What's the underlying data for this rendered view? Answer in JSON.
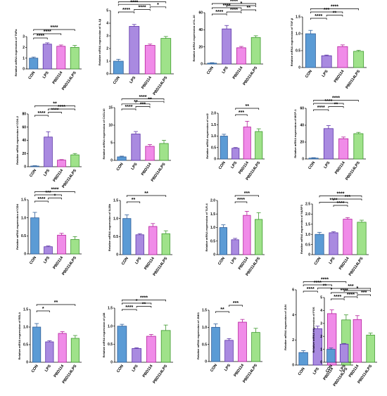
{
  "figure": {
    "colors": [
      "#5b9bd5",
      "#a98ae0",
      "#f08be8",
      "#9fe28a"
    ],
    "edge_colors": [
      "#2f5f9a",
      "#5c33a8",
      "#b4209c",
      "#3f9a2f"
    ]
  },
  "chart_data": [
    {
      "type": "bar",
      "ylabel": "Relative mRNA expression of TNFα",
      "categories": [
        "CON",
        "LPS",
        "PBD114",
        "PBD114LPS"
      ],
      "values": [
        1.0,
        2.3,
        2.1,
        2.0
      ],
      "errors": [
        0.1,
        0.12,
        0.12,
        0.18
      ],
      "ylim": [
        0,
        3
      ],
      "yticks": [
        "0",
        "1",
        "2",
        "3"
      ],
      "significance": [
        {
          "from": 0,
          "to": 1,
          "label": "****"
        },
        {
          "from": 0,
          "to": 2,
          "label": "****"
        },
        {
          "from": 0,
          "to": 3,
          "label": "****"
        }
      ]
    },
    {
      "type": "bar",
      "ylabel": "Relative mRNA expression of IL-1β",
      "categories": [
        "CON",
        "LPS",
        "PBD114",
        "PBD114LPS"
      ],
      "values": [
        1.0,
        3.75,
        2.25,
        2.8
      ],
      "errors": [
        0.15,
        0.15,
        0.1,
        0.15
      ],
      "ylim": [
        0,
        5
      ],
      "yticks": [
        "0",
        "1",
        "2",
        "3",
        "4",
        "5"
      ],
      "significance": [
        {
          "from": 0,
          "to": 1,
          "label": "****"
        },
        {
          "from": 1,
          "to": 2,
          "label": "****"
        },
        {
          "from": 2,
          "to": 3,
          "label": "*"
        },
        {
          "from": 0,
          "to": 2,
          "label": "****"
        },
        {
          "from": 0,
          "to": 3,
          "label": "****"
        }
      ]
    },
    {
      "type": "bar",
      "ylabel": "Relative mRNA expression of IL-10",
      "categories": [
        "CON",
        "LPS",
        "PBD114",
        "PBD114LPS"
      ],
      "values": [
        1.0,
        41.0,
        19.0,
        31.0
      ],
      "errors": [
        0.5,
        4.0,
        1.5,
        2.0
      ],
      "ylim": [
        0,
        60
      ],
      "yticks": [
        "0",
        "20",
        "40",
        "60"
      ],
      "significance": [
        {
          "from": 0,
          "to": 1,
          "label": "****"
        },
        {
          "from": 1,
          "to": 2,
          "label": "****"
        },
        {
          "from": 2,
          "to": 3,
          "label": "**"
        },
        {
          "from": 0,
          "to": 2,
          "label": "****"
        },
        {
          "from": 1,
          "to": 3,
          "label": "*"
        },
        {
          "from": 0,
          "to": 3,
          "label": "****"
        }
      ]
    },
    {
      "type": "bar",
      "ylabel": "Relative mRNA expression of TGF-β",
      "categories": [
        "CON",
        "LPS",
        "PBD114",
        "PBD114LPS"
      ],
      "values": [
        1.0,
        0.35,
        0.62,
        0.48
      ],
      "errors": [
        0.1,
        0.02,
        0.05,
        0.03
      ],
      "ylim": [
        0,
        1.5
      ],
      "yticks": [
        "0",
        "0.5",
        "1.0",
        "1.5"
      ],
      "significance": [
        {
          "from": 0,
          "to": 1,
          "label": "****"
        },
        {
          "from": 1,
          "to": 2,
          "label": "**"
        },
        {
          "from": 0,
          "to": 2,
          "label": "***"
        },
        {
          "from": 0,
          "to": 3,
          "label": "****"
        }
      ]
    },
    {
      "type": "bar",
      "ylabel": "Relative mRNA expression of COX-2",
      "categories": [
        "CON",
        "LPS",
        "PBD114",
        "PBD114LPS"
      ],
      "values": [
        1.0,
        45.0,
        10.0,
        18.0
      ],
      "errors": [
        0.5,
        8.0,
        0.8,
        2.0
      ],
      "ylim": [
        0,
        80
      ],
      "yticks": [
        "0",
        "20",
        "40",
        "60",
        "80"
      ],
      "significance": [
        {
          "from": 0,
          "to": 1,
          "label": "****"
        },
        {
          "from": 1,
          "to": 2,
          "label": "****"
        },
        {
          "from": 1,
          "to": 3,
          "label": "****"
        },
        {
          "from": 0,
          "to": 3,
          "label": "**"
        }
      ]
    },
    {
      "type": "bar",
      "ylabel": "Relative mRNA expression of CXCL10",
      "categories": [
        "CON",
        "LPS",
        "PBD114",
        "PBD114LPS"
      ],
      "values": [
        1.0,
        7.5,
        4.0,
        4.8
      ],
      "errors": [
        0.2,
        0.7,
        0.5,
        0.9
      ],
      "ylim": [
        0,
        15
      ],
      "yticks": [
        "0",
        "5",
        "10",
        "15"
      ],
      "significance": [
        {
          "from": 0,
          "to": 1,
          "label": "****"
        },
        {
          "from": 1,
          "to": 2,
          "label": "***"
        },
        {
          "from": 0,
          "to": 2,
          "label": "**"
        },
        {
          "from": 1,
          "to": 3,
          "label": "**"
        },
        {
          "from": 0,
          "to": 3,
          "label": "****"
        }
      ]
    },
    {
      "type": "bar",
      "ylabel": "Relative mRNA expression of ccl2",
      "categories": [
        "CON",
        "LPS",
        "PBD114",
        "PBD114LPS"
      ],
      "values": [
        1.0,
        0.47,
        1.4,
        1.2
      ],
      "errors": [
        0.08,
        0.03,
        0.25,
        0.12
      ],
      "ylim": [
        0,
        2.0
      ],
      "yticks": [
        "0",
        "0.5",
        "1.0",
        "1.5",
        "2.0"
      ],
      "significance": [
        {
          "from": 1,
          "to": 2,
          "label": "***"
        },
        {
          "from": 1,
          "to": 3,
          "label": "**"
        }
      ]
    },
    {
      "type": "bar",
      "ylabel": "Relative mRNA expression of MCP-1",
      "categories": [
        "CON",
        "LPS",
        "PBD114",
        "PBD114LPS"
      ],
      "values": [
        1.0,
        36.0,
        24.0,
        30.0
      ],
      "errors": [
        0.5,
        3.5,
        2.0,
        1.5
      ],
      "ylim": [
        0,
        60
      ],
      "yticks": [
        "0",
        "20",
        "40",
        "60"
      ],
      "significance": [
        {
          "from": 0,
          "to": 1,
          "label": "****"
        },
        {
          "from": 1,
          "to": 2,
          "label": "**"
        },
        {
          "from": 0,
          "to": 2,
          "label": "****"
        },
        {
          "from": 0,
          "to": 3,
          "label": "****"
        }
      ]
    },
    {
      "type": "bar",
      "ylabel": "Relative mRNA expression of CD4",
      "categories": [
        "CON",
        "LPS",
        "PBD114",
        "PBD114LPS"
      ],
      "values": [
        1.0,
        0.2,
        0.52,
        0.4
      ],
      "errors": [
        0.15,
        0.02,
        0.05,
        0.08
      ],
      "ylim": [
        0,
        1.5
      ],
      "yticks": [
        "0",
        "0.5",
        "1.0",
        "1.5"
      ],
      "significance": [
        {
          "from": 0,
          "to": 1,
          "label": "****"
        },
        {
          "from": 1,
          "to": 2,
          "label": "*"
        },
        {
          "from": 0,
          "to": 2,
          "label": "***"
        },
        {
          "from": 0,
          "to": 3,
          "label": "****"
        }
      ]
    },
    {
      "type": "bar",
      "ylabel": "Relative mRNA expression of IL28b",
      "categories": [
        "CON",
        "LPS",
        "PBD114",
        "PBD114LPS"
      ],
      "values": [
        1.0,
        0.55,
        0.78,
        0.58
      ],
      "errors": [
        0.1,
        0.03,
        0.08,
        0.08
      ],
      "ylim": [
        0,
        1.5
      ],
      "yticks": [
        "0",
        "0.5",
        "1.0",
        "1.5"
      ],
      "significance": [
        {
          "from": 0,
          "to": 1,
          "label": "**"
        },
        {
          "from": 0,
          "to": 3,
          "label": "**"
        }
      ]
    },
    {
      "type": "bar",
      "ylabel": "Relative mRNA expression of TLR-4",
      "categories": [
        "CON",
        "LPS",
        "PBD114",
        "PBD114LPS"
      ],
      "values": [
        1.0,
        0.55,
        1.45,
        1.3
      ],
      "errors": [
        0.1,
        0.05,
        0.15,
        0.25
      ],
      "ylim": [
        0,
        2.0
      ],
      "yticks": [
        "0",
        "0.5",
        "1.0",
        "1.5",
        "2.0"
      ],
      "significance": [
        {
          "from": 1,
          "to": 2,
          "label": "****"
        },
        {
          "from": 1,
          "to": 3,
          "label": "***"
        }
      ]
    },
    {
      "type": "bar",
      "ylabel": "Relative mRNA expression of NLRP3",
      "categories": [
        "CON",
        "LPS",
        "PBD114",
        "PBD114LPS"
      ],
      "values": [
        1.0,
        1.08,
        1.75,
        1.6
      ],
      "errors": [
        0.1,
        0.05,
        0.08,
        0.1
      ],
      "ylim": [
        0,
        2.5
      ],
      "yticks": [
        "0",
        "0.5",
        "1.0",
        "1.5",
        "2.0",
        "2.5"
      ],
      "significance": [
        {
          "from": 1,
          "to": 2,
          "label": "****"
        },
        {
          "from": 0,
          "to": 2,
          "label": "****"
        },
        {
          "from": 1,
          "to": 3,
          "label": "***"
        },
        {
          "from": 0,
          "to": 3,
          "label": "****"
        }
      ]
    },
    {
      "type": "bar",
      "ylabel": "Relative mRNA expression of RELA",
      "categories": [
        "CON",
        "LPS",
        "PBD114",
        "PBD114LPS"
      ],
      "values": [
        1.0,
        0.58,
        0.82,
        0.68
      ],
      "errors": [
        0.1,
        0.03,
        0.05,
        0.08
      ],
      "ylim": [
        0,
        1.5
      ],
      "yticks": [
        "0",
        "0.5",
        "1.0",
        "1.5"
      ],
      "significance": [
        {
          "from": 0,
          "to": 1,
          "label": "*"
        },
        {
          "from": 0,
          "to": 3,
          "label": "**"
        }
      ]
    },
    {
      "type": "bar",
      "ylabel": "Relative mRNA expression of p38",
      "categories": [
        "CON",
        "LPS",
        "PBD114",
        "PBD114LPS"
      ],
      "values": [
        1.0,
        0.38,
        0.72,
        0.88
      ],
      "errors": [
        0.05,
        0.02,
        0.05,
        0.15
      ],
      "ylim": [
        0,
        1.5
      ],
      "yticks": [
        "0",
        "0.5",
        "1.0",
        "1.5"
      ],
      "significance": [
        {
          "from": 0,
          "to": 1,
          "label": "****"
        },
        {
          "from": 1,
          "to": 2,
          "label": "**"
        },
        {
          "from": 0,
          "to": 2,
          "label": "*"
        },
        {
          "from": 0,
          "to": 3,
          "label": "****"
        }
      ]
    },
    {
      "type": "bar",
      "ylabel": "Relative mRNA expression of JNK1",
      "categories": [
        "CON",
        "LPS",
        "PBD114",
        "PBD114LPS"
      ],
      "values": [
        1.0,
        0.62,
        1.15,
        0.85
      ],
      "errors": [
        0.1,
        0.05,
        0.08,
        0.12
      ],
      "ylim": [
        0,
        1.5
      ],
      "yticks": [
        "0",
        "0.5",
        "1.0",
        "1.5"
      ],
      "significance": [
        {
          "from": 0,
          "to": 1,
          "label": "**"
        },
        {
          "from": 1,
          "to": 2,
          "label": "***"
        }
      ]
    },
    {
      "type": "bar",
      "ylabel": "Relative mRNA expression of JUN",
      "categories": [
        "CON",
        "LPS",
        "PBD114",
        "PBD114LPS"
      ],
      "values": [
        1.0,
        2.9,
        4.1,
        3.6
      ],
      "errors": [
        0.15,
        0.2,
        0.3,
        0.4
      ],
      "ylim": [
        0,
        6
      ],
      "yticks": [
        "0",
        "2",
        "4",
        "6"
      ],
      "significance": [
        {
          "from": 0,
          "to": 1,
          "label": "****"
        },
        {
          "from": 1,
          "to": 2,
          "label": "**"
        },
        {
          "from": 0,
          "to": 2,
          "label": "****"
        },
        {
          "from": 0,
          "to": 3,
          "label": "****"
        }
      ]
    },
    {
      "type": "bar",
      "ylabel": "Relative mRNA expression of FOS",
      "categories": [
        "CON",
        "LPS",
        "PBD114",
        "PBD114LPS"
      ],
      "values": [
        1.0,
        1.4,
        3.3,
        2.1
      ],
      "errors": [
        0.1,
        0.05,
        0.3,
        0.15
      ],
      "ylim": [
        0,
        5
      ],
      "yticks": [
        "0",
        "1",
        "2",
        "3",
        "4",
        "5"
      ],
      "significance": [
        {
          "from": 0,
          "to": 1,
          "label": "****"
        },
        {
          "from": 1,
          "to": 2,
          "label": "****"
        },
        {
          "from": 2,
          "to": 3,
          "label": "***"
        },
        {
          "from": 0,
          "to": 2,
          "label": "****"
        },
        {
          "from": 1,
          "to": 3,
          "label": "*"
        },
        {
          "from": 0,
          "to": 3,
          "label": "***"
        }
      ]
    }
  ]
}
